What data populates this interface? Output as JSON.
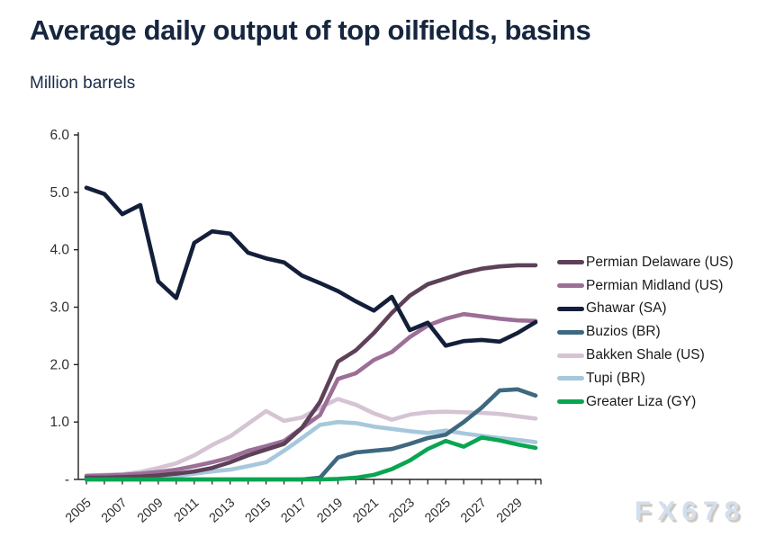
{
  "header": {
    "title": "Average daily output of top oilfields, basins",
    "subtitle": "Million barrels"
  },
  "watermark": "FX678",
  "colors": {
    "title_text": "#16263f",
    "axis": "#222222",
    "tick_label": "#303030",
    "watermark": "#d2dfee"
  },
  "chart_data": {
    "type": "line",
    "title": "Average daily output of top oilfields, basins",
    "ylabel": "Million barrels",
    "xlabel": "",
    "grid": false,
    "legend_position": "right",
    "ylim": [
      0,
      6
    ],
    "yticks": [
      {
        "label": "6.0",
        "value": 6.0
      },
      {
        "label": "5.0",
        "value": 5.0
      },
      {
        "label": "4.0",
        "value": 4.0
      },
      {
        "label": "3.0",
        "value": 3.0
      },
      {
        "label": "2.0",
        "value": 2.0
      },
      {
        "label": "1.0",
        "value": 1.0
      },
      {
        "label": "-",
        "value": 0.0
      }
    ],
    "x": [
      2005,
      2006,
      2007,
      2008,
      2009,
      2010,
      2011,
      2012,
      2013,
      2014,
      2015,
      2016,
      2017,
      2018,
      2019,
      2020,
      2021,
      2022,
      2023,
      2024,
      2025,
      2026,
      2027,
      2028,
      2029,
      2030
    ],
    "x_tick_labels": [
      "2005",
      "2007",
      "2009",
      "2011",
      "2013",
      "2015",
      "2017",
      "2019",
      "2021",
      "2023",
      "2025",
      "2027",
      "2029"
    ],
    "series": [
      {
        "name": "Permian Delaware (US)",
        "color": "#5d4158",
        "values": [
          0.03,
          0.03,
          0.04,
          0.05,
          0.07,
          0.1,
          0.14,
          0.2,
          0.3,
          0.42,
          0.52,
          0.62,
          0.9,
          1.35,
          2.05,
          2.25,
          2.55,
          2.9,
          3.2,
          3.4,
          3.5,
          3.6,
          3.67,
          3.71,
          3.73,
          3.73
        ]
      },
      {
        "name": "Permian Midland (US)",
        "color": "#9c6f97",
        "values": [
          0.06,
          0.07,
          0.08,
          0.1,
          0.13,
          0.17,
          0.23,
          0.3,
          0.38,
          0.5,
          0.58,
          0.67,
          0.9,
          1.12,
          1.75,
          1.85,
          2.08,
          2.22,
          2.48,
          2.68,
          2.8,
          2.88,
          2.84,
          2.8,
          2.77,
          2.76
        ]
      },
      {
        "name": "Ghawar (SA)",
        "color": "#131f3a",
        "values": [
          5.08,
          4.97,
          4.62,
          4.78,
          3.45,
          3.16,
          4.12,
          4.32,
          4.28,
          3.95,
          3.85,
          3.78,
          3.55,
          3.42,
          3.28,
          3.1,
          2.94,
          3.18,
          2.6,
          2.73,
          2.33,
          2.41,
          2.43,
          2.4,
          2.55,
          2.74
        ]
      },
      {
        "name": "Buzios (BR)",
        "color": "#3e6880",
        "values": [
          0,
          0,
          0,
          0,
          0,
          0,
          0,
          0,
          0,
          0,
          0,
          0,
          0,
          0.03,
          0.38,
          0.47,
          0.5,
          0.53,
          0.62,
          0.72,
          0.78,
          1.0,
          1.25,
          1.55,
          1.57,
          1.46
        ]
      },
      {
        "name": "Bakken Shale (US)",
        "color": "#d5c4d3",
        "values": [
          0.07,
          0.08,
          0.09,
          0.13,
          0.2,
          0.28,
          0.42,
          0.6,
          0.75,
          0.97,
          1.19,
          1.02,
          1.08,
          1.25,
          1.4,
          1.3,
          1.15,
          1.04,
          1.13,
          1.17,
          1.18,
          1.17,
          1.16,
          1.14,
          1.1,
          1.06
        ]
      },
      {
        "name": "Tupi (BR)",
        "color": "#a6c8dc",
        "values": [
          0.01,
          0.01,
          0.02,
          0.02,
          0.04,
          0.06,
          0.1,
          0.14,
          0.17,
          0.23,
          0.3,
          0.5,
          0.72,
          0.95,
          1.0,
          0.98,
          0.92,
          0.88,
          0.84,
          0.81,
          0.85,
          0.8,
          0.76,
          0.72,
          0.69,
          0.65
        ]
      },
      {
        "name": "Greater Liza (GY)",
        "color": "#0aa551",
        "values": [
          0,
          0,
          0,
          0,
          0,
          0,
          0,
          0,
          0,
          0,
          0,
          0,
          0,
          0,
          0.01,
          0.03,
          0.08,
          0.18,
          0.33,
          0.53,
          0.67,
          0.57,
          0.73,
          0.68,
          0.61,
          0.55
        ]
      }
    ]
  }
}
